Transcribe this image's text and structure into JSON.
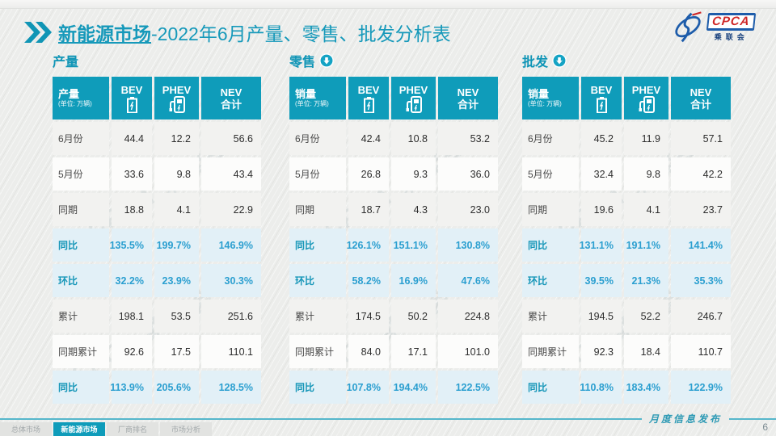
{
  "slide": {
    "title_highlight": "新能源市场",
    "title_rest": "-2022年6月产量、零售、批发分析表",
    "footer_note": "月度信息发布",
    "page_number": "6",
    "watermark": "CPCA 乘联会"
  },
  "logo": {
    "acronym": "CPCA",
    "subtext": "乘联会"
  },
  "colors": {
    "primary_teal": "#0f9cba",
    "title_teal": "#1699ba",
    "highlight_row_bg": "#e2f0f7",
    "highlight_value": "#2b9fd0",
    "footer_line": "#56b7cb",
    "logo_blue": "#1d5caa",
    "logo_red": "#cf2727"
  },
  "nav_tabs": [
    {
      "label": "总体市场",
      "active": false
    },
    {
      "label": "新能源市场",
      "active": true
    },
    {
      "label": "厂商排名",
      "active": false
    },
    {
      "label": "市场分析",
      "active": false
    }
  ],
  "tables": [
    {
      "section_title": "产量",
      "arrow_icon": null,
      "header": {
        "label": "产量",
        "unit": "(单位: 万辆)",
        "columns": [
          {
            "label": "BEV",
            "icon": "battery-icon"
          },
          {
            "label": "PHEV",
            "icon": "charger-icon"
          },
          {
            "label": "NEV\n合计",
            "icon": null
          }
        ]
      },
      "rows": [
        {
          "label": "6月份",
          "values": [
            "44.4",
            "12.2",
            "56.6"
          ],
          "tone": "a",
          "highlight": false
        },
        {
          "label": "5月份",
          "values": [
            "33.6",
            "9.8",
            "43.4"
          ],
          "tone": "b",
          "highlight": false
        },
        {
          "label": "同期",
          "values": [
            "18.8",
            "4.1",
            "22.9"
          ],
          "tone": "a",
          "highlight": false
        },
        {
          "label": "同比",
          "values": [
            "135.5%",
            "199.7%",
            "146.9%"
          ],
          "tone": "h",
          "highlight": true
        },
        {
          "label": "环比",
          "values": [
            "32.2%",
            "23.9%",
            "30.3%"
          ],
          "tone": "h",
          "highlight": true
        },
        {
          "label": "累计",
          "values": [
            "198.1",
            "53.5",
            "251.6"
          ],
          "tone": "a",
          "highlight": false
        },
        {
          "label": "同期累计",
          "values": [
            "92.6",
            "17.5",
            "110.1"
          ],
          "tone": "b",
          "highlight": false
        },
        {
          "label": "同比",
          "values": [
            "113.9%",
            "205.6%",
            "128.5%"
          ],
          "tone": "h",
          "highlight": true
        }
      ]
    },
    {
      "section_title": "零售",
      "arrow_icon": "down-circle-icon",
      "header": {
        "label": "销量",
        "unit": "(单位: 万辆)",
        "columns": [
          {
            "label": "BEV",
            "icon": "battery-icon"
          },
          {
            "label": "PHEV",
            "icon": "charger-icon"
          },
          {
            "label": "NEV\n合计",
            "icon": null
          }
        ]
      },
      "rows": [
        {
          "label": "6月份",
          "values": [
            "42.4",
            "10.8",
            "53.2"
          ],
          "tone": "a",
          "highlight": false
        },
        {
          "label": "5月份",
          "values": [
            "26.8",
            "9.3",
            "36.0"
          ],
          "tone": "b",
          "highlight": false
        },
        {
          "label": "同期",
          "values": [
            "18.7",
            "4.3",
            "23.0"
          ],
          "tone": "a",
          "highlight": false
        },
        {
          "label": "同比",
          "values": [
            "126.1%",
            "151.1%",
            "130.8%"
          ],
          "tone": "h",
          "highlight": true
        },
        {
          "label": "环比",
          "values": [
            "58.2%",
            "16.9%",
            "47.6%"
          ],
          "tone": "h",
          "highlight": true
        },
        {
          "label": "累计",
          "values": [
            "174.5",
            "50.2",
            "224.8"
          ],
          "tone": "a",
          "highlight": false
        },
        {
          "label": "同期累计",
          "values": [
            "84.0",
            "17.1",
            "101.0"
          ],
          "tone": "b",
          "highlight": false
        },
        {
          "label": "同比",
          "values": [
            "107.8%",
            "194.4%",
            "122.5%"
          ],
          "tone": "h",
          "highlight": true
        }
      ]
    },
    {
      "section_title": "批发",
      "arrow_icon": "down-circle-icon",
      "header": {
        "label": "销量",
        "unit": "(单位: 万辆)",
        "columns": [
          {
            "label": "BEV",
            "icon": "battery-icon"
          },
          {
            "label": "PHEV",
            "icon": "charger-icon"
          },
          {
            "label": "NEV\n合计",
            "icon": null
          }
        ]
      },
      "rows": [
        {
          "label": "6月份",
          "values": [
            "45.2",
            "11.9",
            "57.1"
          ],
          "tone": "a",
          "highlight": false
        },
        {
          "label": "5月份",
          "values": [
            "32.4",
            "9.8",
            "42.2"
          ],
          "tone": "b",
          "highlight": false
        },
        {
          "label": "同期",
          "values": [
            "19.6",
            "4.1",
            "23.7"
          ],
          "tone": "a",
          "highlight": false
        },
        {
          "label": "同比",
          "values": [
            "131.1%",
            "191.1%",
            "141.4%"
          ],
          "tone": "h",
          "highlight": true
        },
        {
          "label": "环比",
          "values": [
            "39.5%",
            "21.3%",
            "35.3%"
          ],
          "tone": "h",
          "highlight": true
        },
        {
          "label": "累计",
          "values": [
            "194.5",
            "52.2",
            "246.7"
          ],
          "tone": "a",
          "highlight": false
        },
        {
          "label": "同期累计",
          "values": [
            "92.3",
            "18.4",
            "110.7"
          ],
          "tone": "b",
          "highlight": false
        },
        {
          "label": "同比",
          "values": [
            "110.8%",
            "183.4%",
            "122.9%"
          ],
          "tone": "h",
          "highlight": true
        }
      ]
    }
  ]
}
